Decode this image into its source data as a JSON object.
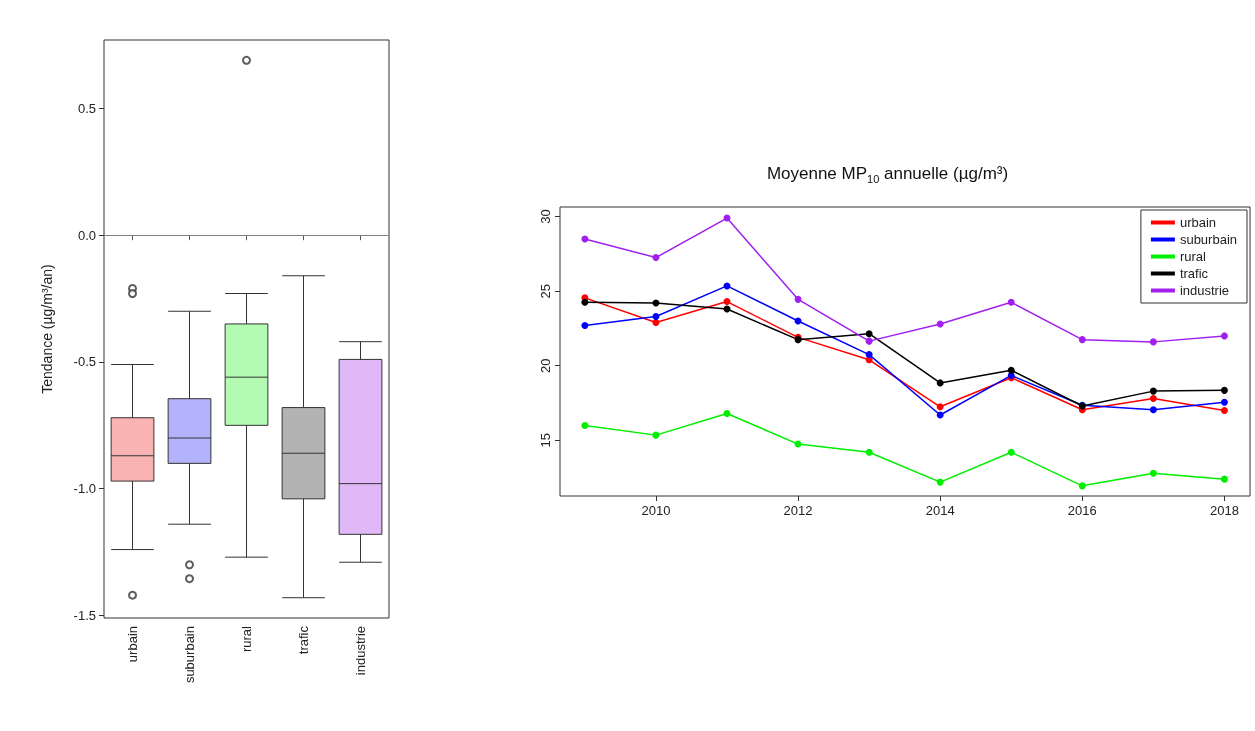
{
  "chart_data": [
    {
      "type": "box",
      "ylabel": "Tendance (µg/m³/an)",
      "categories": [
        "urbain",
        "suburbain",
        "rural",
        "trafic",
        "industrie"
      ],
      "colors": [
        "#f9b3b3",
        "#b3b3fb",
        "#b3fbb3",
        "#b3b3b3",
        "#e1b8f7"
      ],
      "boxes": [
        {
          "low": -1.24,
          "q1": -0.97,
          "median": -0.87,
          "q3": -0.72,
          "high": -0.51,
          "outliers": [
            -0.21,
            -0.23,
            -1.42
          ]
        },
        {
          "low": -1.14,
          "q1": -0.9,
          "median": -0.8,
          "q3": -0.645,
          "high": -0.3,
          "outliers": [
            -1.3,
            -1.355
          ]
        },
        {
          "low": -1.27,
          "q1": -0.75,
          "median": -0.56,
          "q3": -0.35,
          "high": -0.23,
          "outliers": [
            0.69
          ]
        },
        {
          "low": -1.43,
          "q1": -1.04,
          "median": -0.86,
          "q3": -0.68,
          "high": -0.16
        },
        {
          "low": -1.29,
          "q1": -1.18,
          "median": -0.98,
          "q3": -0.49,
          "high": -0.42
        }
      ],
      "ylim": [
        -1.51,
        0.77
      ],
      "yticks": [
        {
          "value": -1.5,
          "label": "-1.5"
        },
        {
          "value": -1,
          "label": "-1.0"
        },
        {
          "value": -0.5,
          "label": "-0.5"
        },
        {
          "value": 0,
          "label": "0.0"
        },
        {
          "value": 0.5,
          "label": "0.5"
        }
      ],
      "ref_lines": [
        {
          "axis": "y",
          "value": 0,
          "color": "#808080"
        }
      ],
      "grid": false
    },
    {
      "type": "line",
      "title": "Moyenne MP$_{10}$ annuelle (µg/m³)",
      "x": [
        2009,
        2010,
        2011,
        2012,
        2013,
        2014,
        2015,
        2016,
        2017,
        2018
      ],
      "series": [
        {
          "name": "urbain",
          "color": "#ff0000",
          "values": [
            24.55,
            22.9,
            24.3,
            21.9,
            20.4,
            17.25,
            19.2,
            17.05,
            17.8,
            17.0
          ]
        },
        {
          "name": "suburbain",
          "color": "#0000ff",
          "values": [
            22.7,
            23.3,
            25.35,
            23.0,
            20.75,
            16.7,
            19.35,
            17.35,
            17.05,
            17.55
          ]
        },
        {
          "name": "rural",
          "color": "#00ee00",
          "values": [
            16.0,
            15.35,
            16.8,
            14.75,
            14.2,
            12.2,
            14.2,
            11.95,
            12.8,
            12.4
          ]
        },
        {
          "name": "trafic",
          "color": "#000000",
          "values": [
            24.25,
            24.2,
            23.8,
            21.75,
            22.15,
            18.85,
            19.7,
            17.3,
            18.3,
            18.35
          ]
        },
        {
          "name": "industrie",
          "color": "#a020f0",
          "values": [
            28.5,
            27.25,
            29.9,
            24.45,
            21.65,
            22.8,
            24.25,
            21.75,
            21.6,
            22.0
          ]
        }
      ],
      "xlim": [
        2008.65,
        2018.36
      ],
      "xticks": [
        2010,
        2012,
        2014,
        2016,
        2018
      ],
      "ylim": [
        11.27,
        30.64
      ],
      "yticks": [
        15,
        20,
        25,
        30
      ],
      "legend": "top right",
      "marker": "circle",
      "line_style": "solid",
      "grid": false
    }
  ]
}
